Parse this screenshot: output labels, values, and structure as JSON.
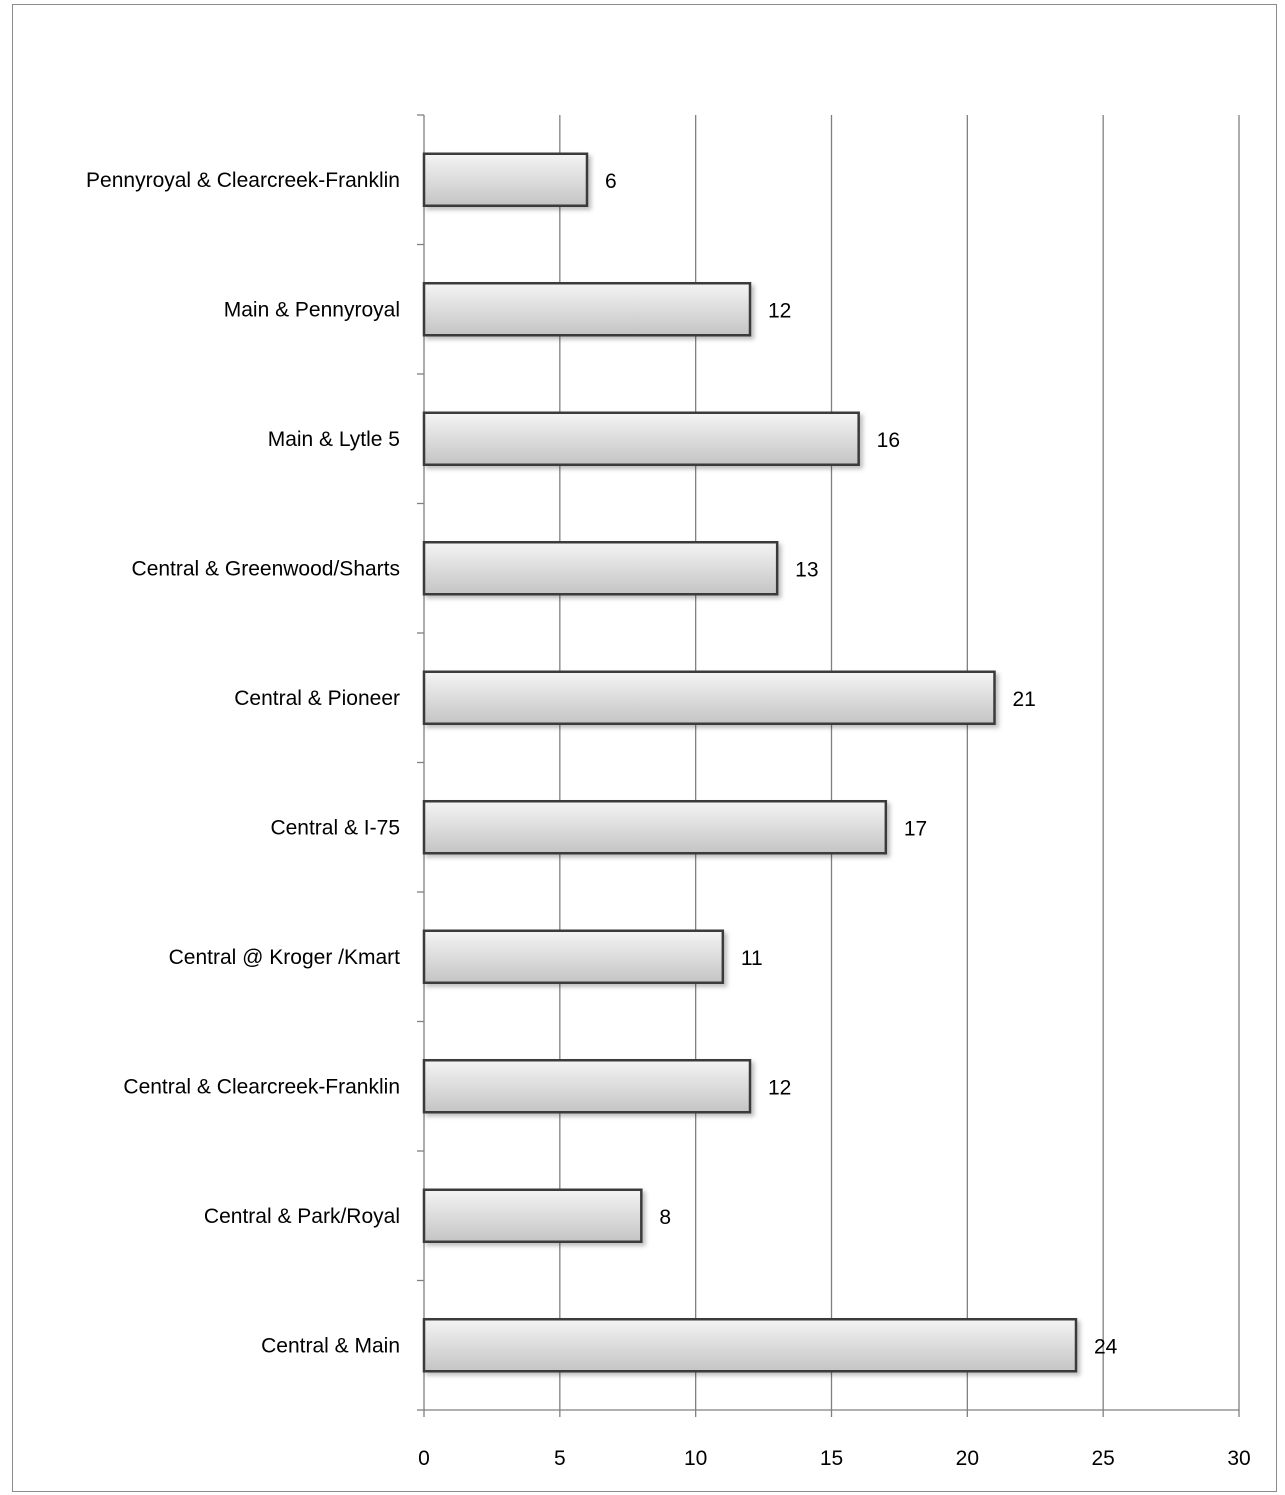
{
  "chart_data": {
    "type": "bar",
    "orientation": "horizontal",
    "categories": [
      "Pennyroyal & Clearcreek-Franklin",
      "Main & Pennyroyal",
      "Main & Lytle 5",
      "Central & Greenwood/Sharts",
      "Central & Pioneer",
      "Central & I-75",
      "Central @ Kroger /Kmart",
      "Central & Clearcreek-Franklin",
      "Central & Park/Royal",
      "Central & Main"
    ],
    "values": [
      6,
      12,
      16,
      13,
      21,
      17,
      11,
      12,
      8,
      24
    ],
    "data_labels": [
      "6",
      "12",
      "16",
      "13",
      "21",
      "17",
      "11",
      "12",
      "8",
      "24"
    ],
    "xticks": [
      0,
      5,
      10,
      15,
      20,
      25,
      30
    ],
    "xtick_labels": [
      "0",
      "5",
      "10",
      "15",
      "20",
      "25",
      "30"
    ],
    "xlim": [
      0,
      30
    ],
    "grid": true,
    "legend": "none",
    "colors": {
      "bar_fill_light": "#ececec",
      "bar_fill_dark": "#c8c8c8",
      "bar_edge": "#3a3a3a",
      "grid": "#808080"
    }
  }
}
